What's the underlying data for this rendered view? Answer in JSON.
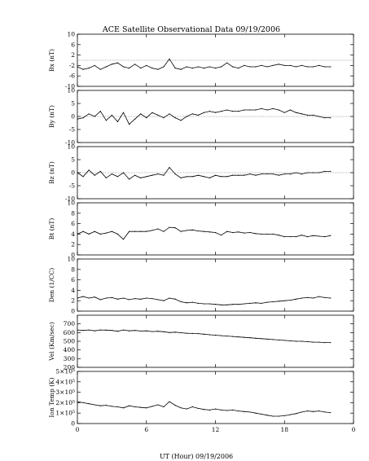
{
  "figure": {
    "title": "ACE Satellite Observational Data   09/19/2006",
    "xlabel": "UT (Hour)   09/19/2006"
  },
  "chart_data": [
    {
      "type": "line",
      "ylabel": "Bx (nT)",
      "ylim": [
        -10,
        10
      ],
      "yticks": [
        "10",
        "6",
        "2",
        "-2",
        "-6",
        "-10"
      ],
      "x": [
        0,
        0.5,
        1,
        1.5,
        2,
        2.5,
        3,
        3.5,
        4,
        4.5,
        5,
        5.5,
        6,
        6.5,
        7,
        7.5,
        8,
        8.5,
        9,
        9.5,
        10,
        10.5,
        11,
        11.5,
        12,
        12.5,
        13,
        13.5,
        14,
        14.5,
        15,
        15.5,
        16,
        16.5,
        17,
        17.5,
        18,
        18.5,
        19,
        19.5,
        20,
        20.5,
        21,
        21.5,
        22
      ],
      "values": [
        -2.5,
        -3.5,
        -3,
        -2,
        -3.5,
        -2.5,
        -1.5,
        -1,
        -2.5,
        -3,
        -1.5,
        -3,
        -2,
        -3,
        -3.5,
        -2.5,
        0.5,
        -3,
        -3.5,
        -2.5,
        -3,
        -2.5,
        -3,
        -2.5,
        -3,
        -2.5,
        -1,
        -2.5,
        -3,
        -2,
        -2.5,
        -2.5,
        -2,
        -2.5,
        -2,
        -1.5,
        -2,
        -2,
        -2.5,
        -2,
        -2.5,
        -2.5,
        -2,
        -2.5,
        -2.5
      ]
    },
    {
      "type": "line",
      "ylabel": "By (nT)",
      "ylim": [
        -10,
        10
      ],
      "yticks": [
        "10",
        "5",
        "0",
        "-5",
        "-10"
      ],
      "x": [
        0,
        0.5,
        1,
        1.5,
        2,
        2.5,
        3,
        3.5,
        4,
        4.5,
        5,
        5.5,
        6,
        6.5,
        7,
        7.5,
        8,
        8.5,
        9,
        9.5,
        10,
        10.5,
        11,
        11.5,
        12,
        12.5,
        13,
        13.5,
        14,
        14.5,
        15,
        15.5,
        16,
        16.5,
        17,
        17.5,
        18,
        18.5,
        19,
        19.5,
        20,
        20.5,
        21,
        21.5,
        22
      ],
      "values": [
        -1,
        -0.5,
        1,
        0,
        2,
        -1.5,
        0.5,
        -2,
        1.5,
        -3,
        -1,
        1,
        -0.5,
        1.5,
        0.5,
        -0.5,
        1,
        -0.5,
        -1.5,
        0,
        1,
        0.5,
        1.5,
        2,
        1.5,
        2,
        2.5,
        2,
        2,
        2.5,
        2.5,
        2.5,
        3,
        2.5,
        3,
        2.5,
        1.5,
        2.5,
        1.5,
        1,
        0.5,
        0.5,
        0,
        -0.5,
        -0.5
      ]
    },
    {
      "type": "line",
      "ylabel": "Bz (nT)",
      "ylim": [
        -10,
        10
      ],
      "yticks": [
        "10",
        "5",
        "0",
        "-5",
        "-10"
      ],
      "x": [
        0,
        0.5,
        1,
        1.5,
        2,
        2.5,
        3,
        3.5,
        4,
        4.5,
        5,
        5.5,
        6,
        6.5,
        7,
        7.5,
        8,
        8.5,
        9,
        9.5,
        10,
        10.5,
        11,
        11.5,
        12,
        12.5,
        13,
        13.5,
        14,
        14.5,
        15,
        15.5,
        16,
        16.5,
        17,
        17.5,
        18,
        18.5,
        19,
        19.5,
        20,
        20.5,
        21,
        21.5,
        22
      ],
      "values": [
        0,
        -1.5,
        1,
        -1,
        0.5,
        -2,
        -0.5,
        -1.5,
        0,
        -2.5,
        -1,
        -2,
        -1.5,
        -1,
        -0.5,
        -1,
        2,
        -0.5,
        -2,
        -1.5,
        -1.5,
        -1,
        -1.5,
        -2,
        -1,
        -1.5,
        -1.5,
        -1,
        -1,
        -1,
        -0.5,
        -1,
        -0.5,
        -0.5,
        -0.5,
        -1,
        -0.5,
        -0.5,
        0,
        -0.5,
        0,
        0,
        0,
        0.5,
        0.5
      ]
    },
    {
      "type": "line",
      "ylabel": "Bt (nT)",
      "ylim": [
        0,
        10
      ],
      "yticks": [
        "10",
        "8",
        "6",
        "4",
        "2",
        "0"
      ],
      "x": [
        0,
        0.5,
        1,
        1.5,
        2,
        2.5,
        3,
        3.5,
        4,
        4.5,
        5,
        5.5,
        6,
        6.5,
        7,
        7.5,
        8,
        8.5,
        9,
        9.5,
        10,
        10.5,
        11,
        11.5,
        12,
        12.5,
        13,
        13.5,
        14,
        14.5,
        15,
        15.5,
        16,
        16.5,
        17,
        17.5,
        18,
        18.5,
        19,
        19.5,
        20,
        20.5,
        21,
        21.5,
        22
      ],
      "values": [
        4,
        4.5,
        4,
        4.5,
        4,
        4.2,
        4.5,
        4,
        3,
        4.5,
        4.5,
        4.5,
        4.5,
        4.7,
        5,
        4.5,
        5.3,
        5.2,
        4.5,
        4.7,
        4.8,
        4.6,
        4.5,
        4.4,
        4.3,
        3.8,
        4.5,
        4.3,
        4.4,
        4.2,
        4.3,
        4.1,
        4,
        4,
        4,
        3.8,
        3.5,
        3.5,
        3.5,
        3.8,
        3.5,
        3.7,
        3.6,
        3.5,
        3.7
      ]
    },
    {
      "type": "line",
      "ylabel": "Den (1/CC)",
      "ylim": [
        0,
        10
      ],
      "yticks": [
        "10",
        "8",
        "6",
        "4",
        "2",
        "0"
      ],
      "x": [
        0,
        0.5,
        1,
        1.5,
        2,
        2.5,
        3,
        3.5,
        4,
        4.5,
        5,
        5.5,
        6,
        6.5,
        7,
        7.5,
        8,
        8.5,
        9,
        9.5,
        10,
        10.5,
        11,
        11.5,
        12,
        12.5,
        13,
        13.5,
        14,
        14.5,
        15,
        15.5,
        16,
        16.5,
        17,
        17.5,
        18,
        18.5,
        19,
        19.5,
        20,
        20.5,
        21,
        21.5,
        22
      ],
      "values": [
        2.5,
        2.8,
        2.5,
        2.7,
        2.2,
        2.5,
        2.6,
        2.3,
        2.5,
        2.2,
        2.4,
        2.3,
        2.5,
        2.4,
        2.2,
        2,
        2.5,
        2.3,
        1.8,
        1.6,
        1.7,
        1.5,
        1.4,
        1.4,
        1.3,
        1.2,
        1.2,
        1.3,
        1.3,
        1.4,
        1.5,
        1.6,
        1.5,
        1.7,
        1.8,
        1.9,
        2,
        2.1,
        2.3,
        2.5,
        2.6,
        2.5,
        2.8,
        2.6,
        2.5
      ]
    },
    {
      "type": "line",
      "ylabel": "Vel (Km/sec)",
      "ylim": [
        200,
        800
      ],
      "yticks": [
        "700",
        "600",
        "500",
        "400",
        "300",
        "200"
      ],
      "x": [
        0,
        0.5,
        1,
        1.5,
        2,
        2.5,
        3,
        3.5,
        4,
        4.5,
        5,
        5.5,
        6,
        6.5,
        7,
        7.5,
        8,
        8.5,
        9,
        9.5,
        10,
        10.5,
        11,
        11.5,
        12,
        12.5,
        13,
        13.5,
        14,
        14.5,
        15,
        15.5,
        16,
        16.5,
        17,
        17.5,
        18,
        18.5,
        19,
        19.5,
        20,
        20.5,
        21,
        21.5,
        22
      ],
      "values": [
        630,
        625,
        630,
        620,
        630,
        628,
        625,
        615,
        630,
        620,
        625,
        618,
        620,
        612,
        615,
        610,
        600,
        605,
        598,
        592,
        590,
        588,
        582,
        575,
        570,
        565,
        560,
        555,
        550,
        545,
        540,
        535,
        530,
        525,
        520,
        515,
        510,
        505,
        500,
        500,
        495,
        490,
        490,
        485,
        485
      ]
    },
    {
      "type": "line",
      "ylabel": "Ion Temp (K)",
      "ylim": [
        0,
        500000
      ],
      "yticks": [
        "5×10⁵",
        "4×10⁵",
        "3×10⁵",
        "2×10⁵",
        "1×10⁵",
        "0"
      ],
      "x": [
        0,
        0.5,
        1,
        1.5,
        2,
        2.5,
        3,
        3.5,
        4,
        4.5,
        5,
        5.5,
        6,
        6.5,
        7,
        7.5,
        8,
        8.5,
        9,
        9.5,
        10,
        10.5,
        11,
        11.5,
        12,
        12.5,
        13,
        13.5,
        14,
        14.5,
        15,
        15.5,
        16,
        16.5,
        17,
        17.5,
        18,
        18.5,
        19,
        19.5,
        20,
        20.5,
        21,
        21.5,
        22
      ],
      "values": [
        210000,
        200000,
        190000,
        180000,
        170000,
        175000,
        165000,
        160000,
        150000,
        170000,
        160000,
        155000,
        150000,
        165000,
        180000,
        160000,
        210000,
        175000,
        150000,
        140000,
        160000,
        145000,
        135000,
        130000,
        140000,
        130000,
        125000,
        130000,
        120000,
        115000,
        110000,
        100000,
        90000,
        80000,
        70000,
        70000,
        75000,
        85000,
        95000,
        110000,
        120000,
        115000,
        120000,
        110000,
        105000
      ]
    }
  ],
  "xaxis": {
    "ticks": [
      "0",
      "6",
      "12",
      "18",
      "0"
    ],
    "range": [
      0,
      24
    ]
  }
}
